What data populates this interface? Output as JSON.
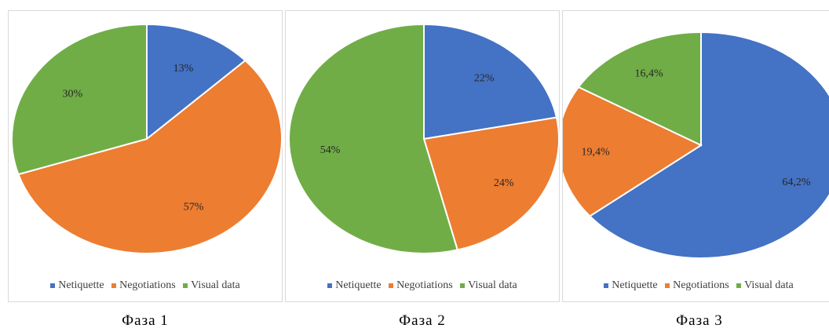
{
  "series_colors": {
    "Netiquette": "#4472c4",
    "Negotiations": "#ed7d31",
    "Visual data": "#70ad47"
  },
  "legend": [
    "Netiquette",
    "Negotiations",
    "Visual data"
  ],
  "chart_data": [
    {
      "type": "pie",
      "caption": "Фаза 1",
      "categories": [
        "Netiquette",
        "Negotiations",
        "Visual data"
      ],
      "values": [
        13,
        57,
        30
      ],
      "labels": [
        "13%",
        "57%",
        "30%"
      ]
    },
    {
      "type": "pie",
      "caption": "Фаза 2",
      "categories": [
        "Netiquette",
        "Negotiations",
        "Visual data"
      ],
      "values": [
        22,
        24,
        54
      ],
      "labels": [
        "22%",
        "24%",
        "54%"
      ]
    },
    {
      "type": "pie",
      "caption": "Фаза 3",
      "categories": [
        "Netiquette",
        "Negotiations",
        "Visual data"
      ],
      "values": [
        64.2,
        19.4,
        16.4
      ],
      "labels": [
        "64,2%",
        "19,4%",
        "16,4%"
      ]
    }
  ]
}
